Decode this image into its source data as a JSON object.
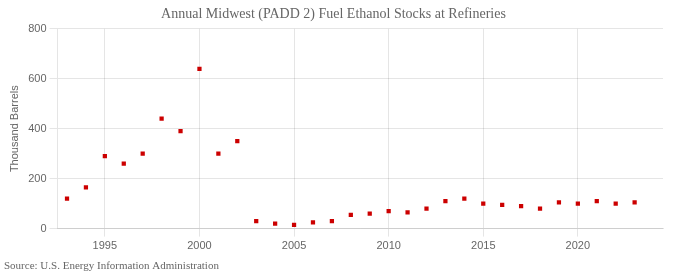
{
  "chart_data": {
    "type": "scatter",
    "title": "Annual Midwest (PADD 2) Fuel Ethanol Stocks at Refineries",
    "ylabel": "Thousand Barrels",
    "annotations": [
      "Source: U.S. Energy Information Administration"
    ],
    "x": [
      1993,
      1994,
      1995,
      1996,
      1997,
      1998,
      1999,
      2000,
      2001,
      2002,
      2003,
      2004,
      2005,
      2006,
      2007,
      2008,
      2009,
      2010,
      2011,
      2012,
      2013,
      2014,
      2015,
      2016,
      2017,
      2018,
      2019,
      2020,
      2021,
      2022,
      2023
    ],
    "values": [
      120,
      165,
      290,
      260,
      300,
      440,
      390,
      640,
      300,
      350,
      30,
      20,
      15,
      25,
      30,
      55,
      60,
      70,
      65,
      80,
      110,
      120,
      100,
      95,
      90,
      80,
      105,
      100,
      110,
      100,
      105
    ],
    "color": "#cc0000",
    "marker": "square",
    "xlim": [
      1992.5,
      2024.5
    ],
    "xticks": [
      1995,
      2000,
      2005,
      2010,
      2015,
      2020
    ],
    "ylim": [
      0,
      800
    ],
    "yticks": [
      0,
      200,
      400,
      600,
      800
    ],
    "grid": true
  }
}
